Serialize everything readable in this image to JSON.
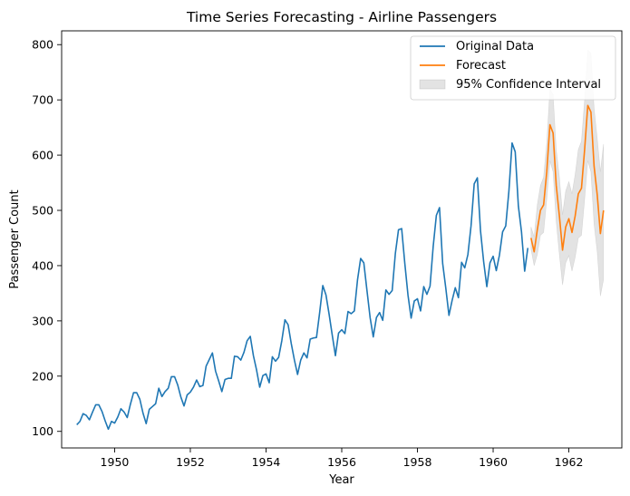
{
  "chart_data": {
    "type": "line",
    "title": "Time Series Forecasting - Airline Passengers",
    "xlabel": "Year",
    "ylabel": "Passenger Count",
    "xlim": [
      1948.6,
      1963.4
    ],
    "ylim": [
      70,
      825
    ],
    "x_ticks": [
      1950,
      1952,
      1954,
      1956,
      1958,
      1960,
      1962
    ],
    "y_ticks": [
      100,
      200,
      300,
      400,
      500,
      600,
      700,
      800
    ],
    "grid": false,
    "legend_position": "top-right",
    "colors": {
      "original": "#1f77b4",
      "forecast": "#ff7f0e",
      "interval": "#b0b0b0"
    },
    "series": [
      {
        "name": "Original Data",
        "start": 1949.0,
        "step": 0.08333,
        "values": [
          112,
          118,
          132,
          129,
          121,
          135,
          148,
          148,
          136,
          119,
          104,
          118,
          115,
          126,
          141,
          135,
          125,
          149,
          170,
          170,
          158,
          133,
          114,
          140,
          145,
          150,
          178,
          163,
          172,
          178,
          199,
          199,
          184,
          162,
          146,
          166,
          171,
          180,
          193,
          181,
          183,
          218,
          230,
          242,
          209,
          191,
          172,
          194,
          196,
          196,
          236,
          235,
          229,
          243,
          264,
          272,
          237,
          211,
          180,
          201,
          204,
          188,
          235,
          227,
          234,
          264,
          302,
          293,
          259,
          229,
          203,
          229,
          242,
          233,
          267,
          269,
          270,
          315,
          364,
          347,
          312,
          274,
          237,
          278,
          284,
          277,
          317,
          313,
          318,
          374,
          413,
          405,
          355,
          306,
          271,
          306,
          315,
          301,
          356,
          348,
          355,
          422,
          465,
          467,
          404,
          347,
          305,
          336,
          340,
          318,
          362,
          348,
          363,
          435,
          491,
          505,
          404,
          359,
          310,
          337,
          360,
          342,
          406,
          396,
          420,
          472,
          548,
          559,
          463,
          407,
          362,
          405,
          417,
          391,
          419,
          461,
          472,
          535,
          622,
          606,
          508,
          461,
          390,
          432
        ]
      },
      {
        "name": "Forecast",
        "start": 1961.0,
        "step": 0.08333,
        "values": [
          450,
          425,
          465,
          500,
          510,
          570,
          655,
          640,
          545,
          490,
          428,
          470,
          485,
          460,
          490,
          530,
          540,
          610,
          690,
          678,
          580,
          528,
          458,
          500
        ]
      },
      {
        "name": "95% Confidence Interval",
        "start": 1961.0,
        "step": 0.08333,
        "lower": [
          430,
          400,
          420,
          455,
          460,
          520,
          590,
          570,
          480,
          420,
          365,
          405,
          418,
          390,
          415,
          450,
          455,
          520,
          590,
          570,
          475,
          425,
          345,
          375
        ],
        "upper": [
          470,
          452,
          510,
          545,
          560,
          622,
          720,
          710,
          610,
          560,
          492,
          535,
          552,
          530,
          565,
          610,
          625,
          700,
          790,
          785,
          685,
          630,
          570,
          620
        ]
      }
    ]
  }
}
